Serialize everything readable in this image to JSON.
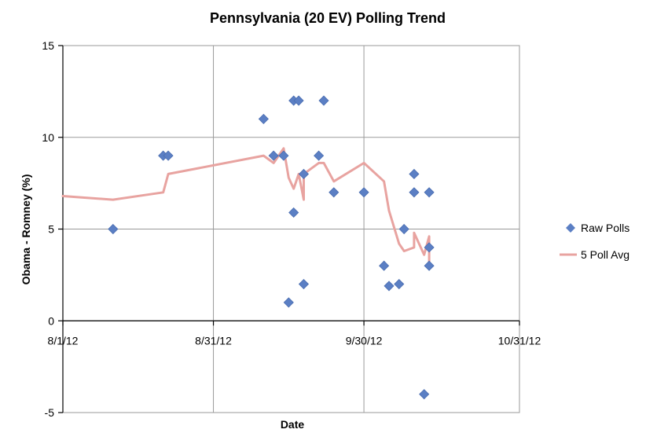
{
  "chart_data": {
    "type": "scatter",
    "title": "Pennsylvania (20 EV) Polling Trend",
    "xlabel": "Date",
    "ylabel": "Obama - Romney (%)",
    "x_range": [
      "2012-08-01",
      "2012-10-31"
    ],
    "x_ticks": [
      "8/1/12",
      "8/31/12",
      "9/30/12",
      "10/31/12"
    ],
    "x_tick_dates": [
      "2012-08-01",
      "2012-08-31",
      "2012-09-30",
      "2012-10-31"
    ],
    "ylim": [
      -5,
      15
    ],
    "y_ticks": [
      -5,
      0,
      5,
      10,
      15
    ],
    "grid": true,
    "legend_position": "right",
    "series": [
      {
        "name": "Raw Polls",
        "kind": "scatter",
        "marker": "diamond",
        "color": "#5b7fc4",
        "points": [
          {
            "x": "2012-08-11",
            "y": 5
          },
          {
            "x": "2012-08-21",
            "y": 9
          },
          {
            "x": "2012-08-22",
            "y": 9
          },
          {
            "x": "2012-09-10",
            "y": 11
          },
          {
            "x": "2012-09-12",
            "y": 9
          },
          {
            "x": "2012-09-14",
            "y": 9
          },
          {
            "x": "2012-09-15",
            "y": 1
          },
          {
            "x": "2012-09-16",
            "y": 5.9
          },
          {
            "x": "2012-09-16",
            "y": 12
          },
          {
            "x": "2012-09-17",
            "y": 12
          },
          {
            "x": "2012-09-18",
            "y": 8
          },
          {
            "x": "2012-09-18",
            "y": 2
          },
          {
            "x": "2012-09-21",
            "y": 9
          },
          {
            "x": "2012-09-22",
            "y": 12
          },
          {
            "x": "2012-09-24",
            "y": 7
          },
          {
            "x": "2012-09-30",
            "y": 7
          },
          {
            "x": "2012-10-04",
            "y": 3
          },
          {
            "x": "2012-10-05",
            "y": 1.9
          },
          {
            "x": "2012-10-07",
            "y": 2
          },
          {
            "x": "2012-10-08",
            "y": 5
          },
          {
            "x": "2012-10-10",
            "y": 8
          },
          {
            "x": "2012-10-10",
            "y": 7
          },
          {
            "x": "2012-10-12",
            "y": -4
          },
          {
            "x": "2012-10-13",
            "y": 7
          },
          {
            "x": "2012-10-13",
            "y": 4
          },
          {
            "x": "2012-10-13",
            "y": 3
          }
        ]
      },
      {
        "name": "5 Poll Avg",
        "kind": "line",
        "color": "#e8a3a0",
        "points": [
          {
            "x": "2012-08-01",
            "y": 6.8
          },
          {
            "x": "2012-08-11",
            "y": 6.6
          },
          {
            "x": "2012-08-21",
            "y": 7.0
          },
          {
            "x": "2012-08-22",
            "y": 8.0
          },
          {
            "x": "2012-09-10",
            "y": 9.0
          },
          {
            "x": "2012-09-12",
            "y": 8.6
          },
          {
            "x": "2012-09-14",
            "y": 9.4
          },
          {
            "x": "2012-09-15",
            "y": 7.8
          },
          {
            "x": "2012-09-16",
            "y": 7.2
          },
          {
            "x": "2012-09-17",
            "y": 8.0
          },
          {
            "x": "2012-09-18",
            "y": 6.6
          },
          {
            "x": "2012-09-18",
            "y": 8.0
          },
          {
            "x": "2012-09-21",
            "y": 8.6
          },
          {
            "x": "2012-09-22",
            "y": 8.6
          },
          {
            "x": "2012-09-24",
            "y": 7.6
          },
          {
            "x": "2012-09-30",
            "y": 8.6
          },
          {
            "x": "2012-10-04",
            "y": 7.6
          },
          {
            "x": "2012-10-05",
            "y": 6.0
          },
          {
            "x": "2012-10-07",
            "y": 4.2
          },
          {
            "x": "2012-10-08",
            "y": 3.8
          },
          {
            "x": "2012-10-10",
            "y": 4.0
          },
          {
            "x": "2012-10-10",
            "y": 4.8
          },
          {
            "x": "2012-10-12",
            "y": 3.6
          },
          {
            "x": "2012-10-13",
            "y": 4.6
          },
          {
            "x": "2012-10-13",
            "y": 3.2
          }
        ]
      }
    ]
  }
}
